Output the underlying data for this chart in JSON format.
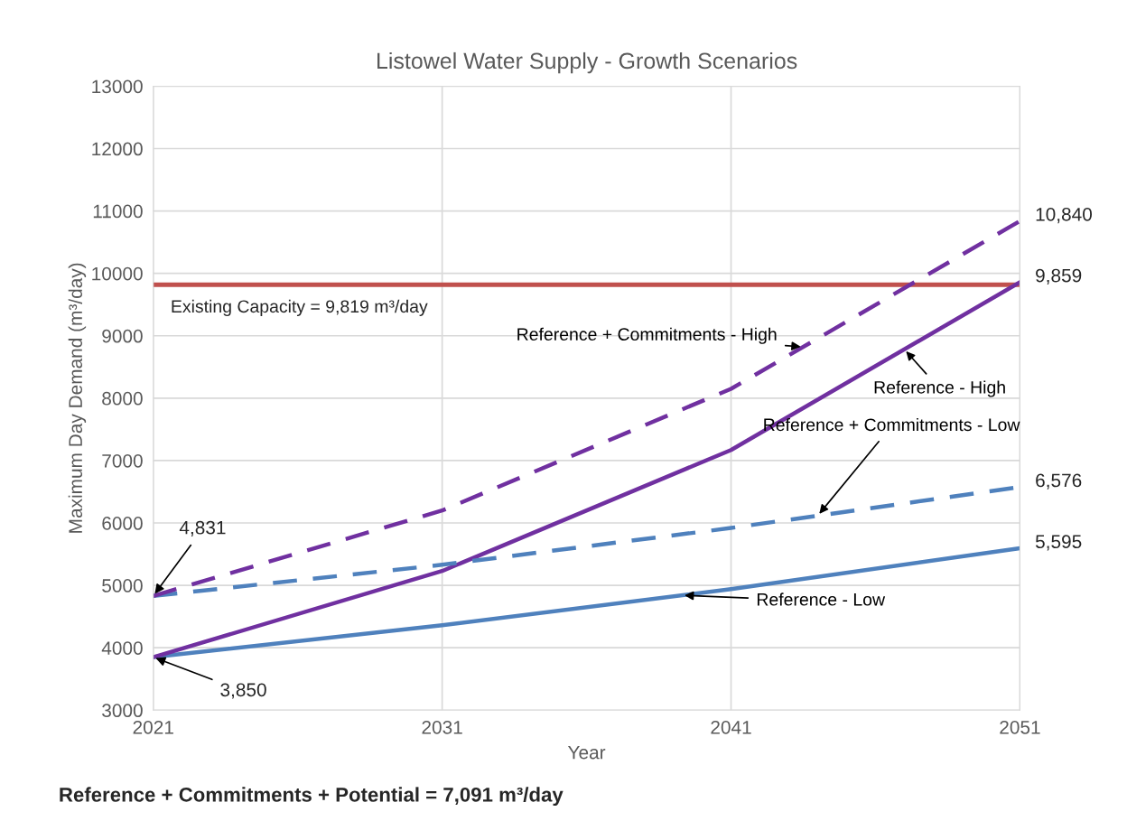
{
  "chart_data": {
    "type": "line",
    "title": "Listowel Water Supply - Growth Scenarios",
    "xlabel": "Year",
    "ylabel": "Maximum Day Demand (m³/day)",
    "x": [
      2021,
      2031,
      2041,
      2051
    ],
    "series": [
      {
        "name": "Reference - Low",
        "color": "#4f81bd",
        "line_style": "solid",
        "values": [
          3850,
          4360,
          4940,
          5595
        ],
        "value_labels": [
          "3,850",
          null,
          null,
          "5,595"
        ]
      },
      {
        "name": "Reference - High",
        "color": "#7030a0",
        "line_style": "solid",
        "values": [
          3850,
          5230,
          7170,
          9859
        ],
        "value_labels": [
          null,
          null,
          null,
          "9,859"
        ]
      },
      {
        "name": "Reference + Commitments - Low",
        "color": "#4f81bd",
        "line_style": "dashed",
        "values": [
          4831,
          5330,
          5920,
          6576
        ],
        "value_labels": [
          null,
          null,
          null,
          "6,576"
        ]
      },
      {
        "name": "Reference + Commitments - High",
        "color": "#7030a0",
        "line_style": "dashed",
        "values": [
          4831,
          6200,
          8150,
          10840
        ],
        "value_labels": [
          "4,831",
          null,
          null,
          "10,840"
        ]
      }
    ],
    "xlim": [
      2021,
      2051
    ],
    "xticks": [
      2021,
      2031,
      2041,
      2051
    ],
    "ylim": [
      3000,
      13000
    ],
    "yticks": [
      3000,
      4000,
      5000,
      6000,
      7000,
      8000,
      9000,
      10000,
      11000,
      12000,
      13000
    ],
    "ref_lines": [
      {
        "axis": "y",
        "value": 9819,
        "label": "Existing Capacity = 9,819 m³/day",
        "color": "#c0504d"
      }
    ],
    "annotations": [
      "Reference + Commitments + Potential = 7,091 m³/day"
    ],
    "grid": true,
    "legend": false,
    "marker": "none"
  }
}
